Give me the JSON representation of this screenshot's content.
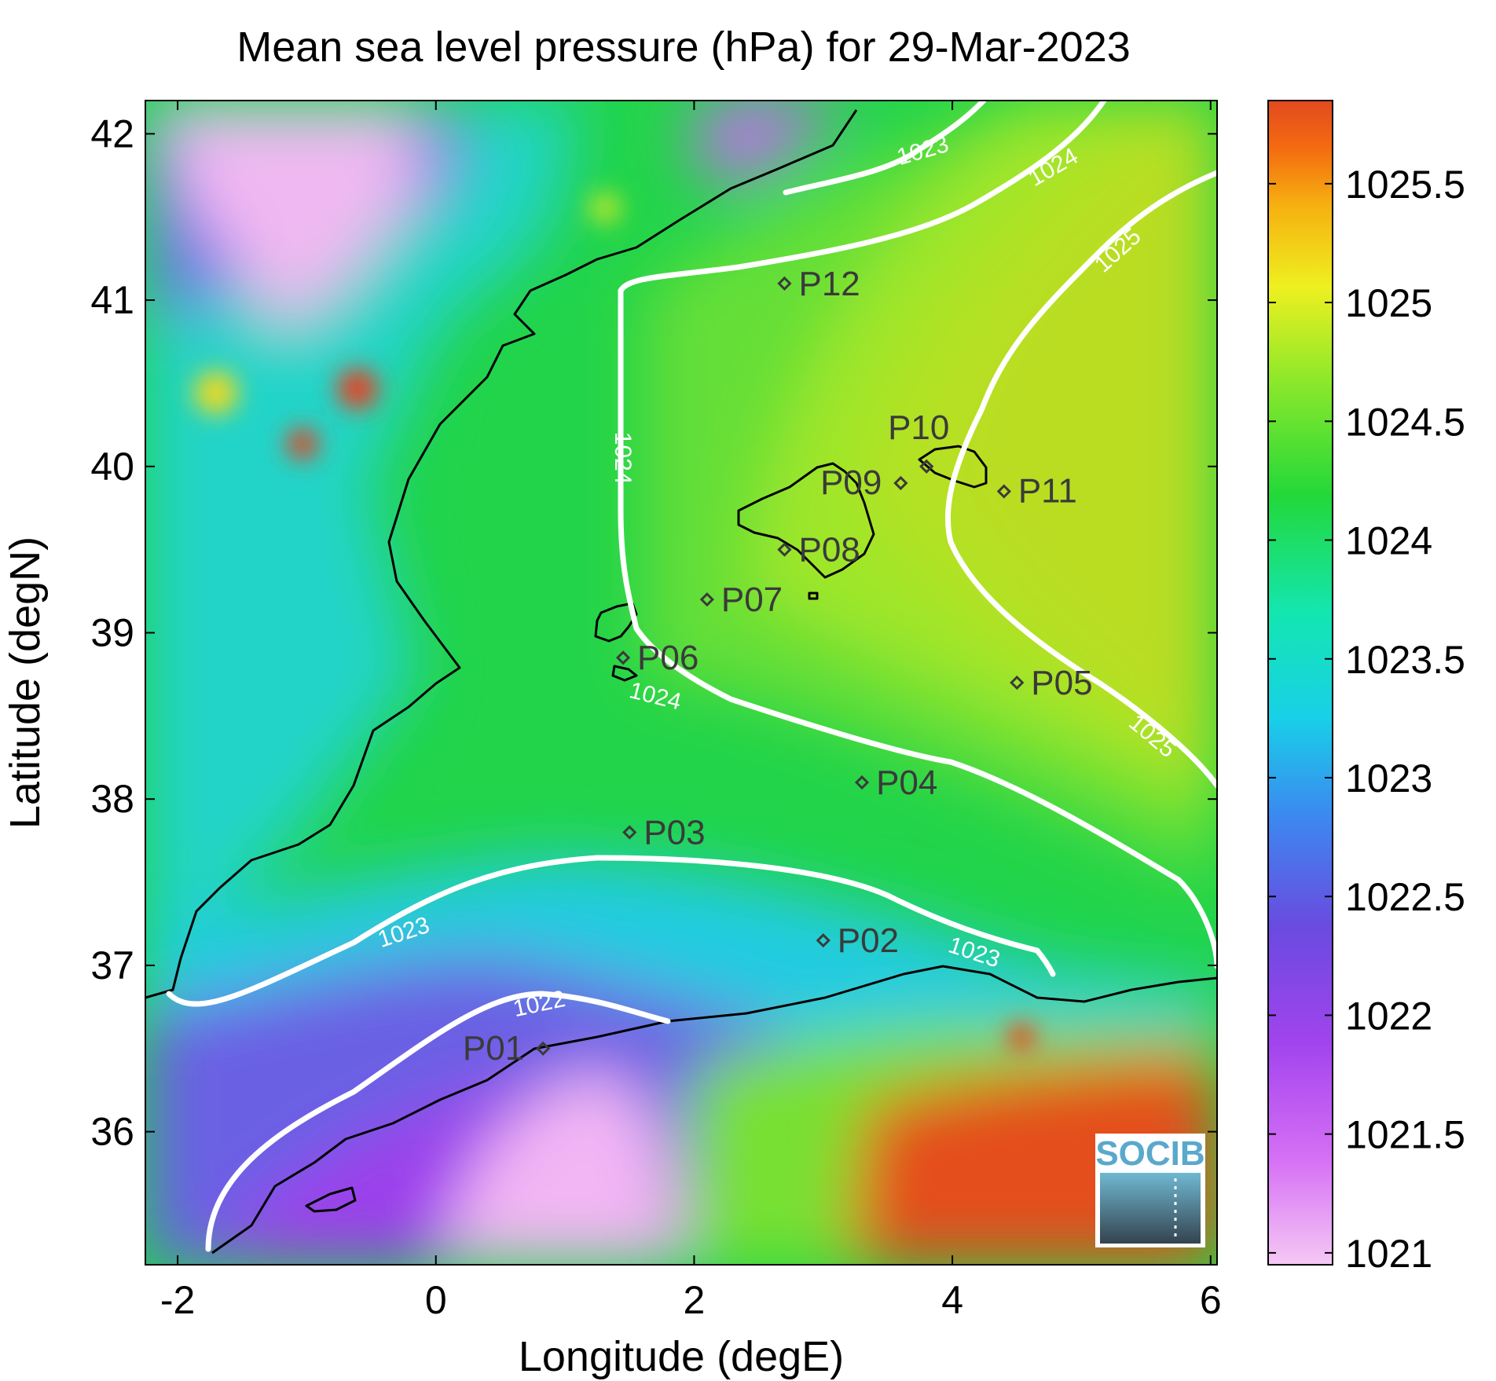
{
  "chart_data": {
    "type": "heatmap",
    "title": "Mean sea level pressure (hPa) for 29-Mar-2023",
    "xlabel": "Longitude (degE)",
    "ylabel": "Latitude (degN)",
    "xlim": [
      -2.25,
      6.05
    ],
    "ylim": [
      35.2,
      42.2
    ],
    "x_ticks": [
      -2,
      0,
      2,
      4,
      6
    ],
    "x_tick_labels": [
      "-2",
      "0",
      "2",
      "4",
      "6"
    ],
    "y_ticks": [
      36,
      37,
      38,
      39,
      40,
      41,
      42
    ],
    "y_tick_labels": [
      "36",
      "37",
      "38",
      "39",
      "40",
      "41",
      "42"
    ],
    "colorbar": {
      "range": [
        1020.95,
        1025.85
      ],
      "ticks": [
        1021,
        1021.5,
        1022,
        1022.5,
        1023,
        1023.5,
        1024,
        1024.5,
        1025,
        1025.5
      ],
      "tick_labels": [
        "1021",
        "1021.5",
        "1022",
        "1022.5",
        "1023",
        "1023.5",
        "1024",
        "1024.5",
        "1025",
        "1025.5"
      ],
      "colormap": [
        "#f5c8f5",
        "#b844f0",
        "#7a38e0",
        "#3b82f0",
        "#18e8d8",
        "#1adc8a",
        "#22d83a",
        "#8ee82a",
        "#eef020",
        "#f6b010",
        "#f46a10",
        "#e24a20"
      ]
    },
    "contours": [
      {
        "label": "1022",
        "value": 1022
      },
      {
        "label": "1023",
        "value": 1023
      },
      {
        "label": "1024",
        "value": 1024
      },
      {
        "label": "1025",
        "value": 1025
      }
    ],
    "contour_labels": [
      {
        "text": "1022",
        "lon": 0.8,
        "lat": 36.77
      },
      {
        "text": "1023",
        "lon": -0.25,
        "lat": 37.2
      },
      {
        "text": "1023",
        "lon": 4.17,
        "lat": 37.08
      },
      {
        "text": "1023",
        "lon": 3.77,
        "lat": 41.9
      },
      {
        "text": "1024",
        "lon": 1.45,
        "lat": 40.05
      },
      {
        "text": "1024",
        "lon": 1.7,
        "lat": 38.62
      },
      {
        "text": "1024",
        "lon": 4.78,
        "lat": 41.8
      },
      {
        "text": "1025",
        "lon": 5.28,
        "lat": 41.3
      },
      {
        "text": "1025",
        "lon": 5.55,
        "lat": 38.38
      }
    ],
    "stations": [
      {
        "name": "P01",
        "lon": 0.83,
        "lat": 36.5
      },
      {
        "name": "P02",
        "lon": 3.0,
        "lat": 37.15
      },
      {
        "name": "P03",
        "lon": 1.5,
        "lat": 37.8
      },
      {
        "name": "P04",
        "lon": 3.3,
        "lat": 38.1
      },
      {
        "name": "P05",
        "lon": 4.5,
        "lat": 38.7
      },
      {
        "name": "P06",
        "lon": 1.45,
        "lat": 38.85
      },
      {
        "name": "P07",
        "lon": 2.1,
        "lat": 39.2
      },
      {
        "name": "P08",
        "lon": 2.7,
        "lat": 39.5
      },
      {
        "name": "P09",
        "lon": 3.6,
        "lat": 39.9
      },
      {
        "name": "P10",
        "lon": 3.8,
        "lat": 40.0
      },
      {
        "name": "P11",
        "lon": 4.4,
        "lat": 39.85
      },
      {
        "name": "P12",
        "lon": 2.7,
        "lat": 41.1
      }
    ],
    "logo_text": "SOCIB"
  }
}
